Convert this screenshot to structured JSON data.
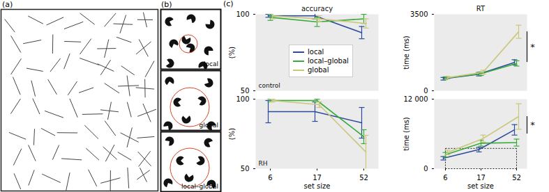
{
  "panel_labels": [
    "(a)",
    "(b)",
    "(c)"
  ],
  "stimuli": [
    "local",
    "global",
    "local–global"
  ],
  "chart_data": [
    {
      "type": "line",
      "title": "accuracy",
      "annotation": "control",
      "categories": [
        6,
        17,
        52
      ],
      "y_label": "(%)",
      "ylim": [
        50,
        100
      ],
      "yticks": [
        50,
        100
      ],
      "tick_labels": "y",
      "legend": "center",
      "series": [
        {
          "name": "local",
          "color": "#2b4a9b",
          "values": [
            99,
            99,
            88
          ],
          "errors": [
            1,
            2,
            4
          ]
        },
        {
          "name": "local–global",
          "color": "#3aab3a",
          "values": [
            98,
            95,
            97
          ],
          "errors": [
            2,
            3,
            3
          ]
        },
        {
          "name": "global",
          "color": "#c9c77a",
          "values": [
            99,
            97,
            94
          ],
          "errors": [
            2,
            2,
            3
          ]
        }
      ]
    },
    {
      "type": "line",
      "title": "RT",
      "categories": [
        6,
        17,
        52
      ],
      "y_label": "time (ms)",
      "ylim": [
        0,
        3500
      ],
      "yticks": [
        0,
        3500
      ],
      "tick_labels": "y",
      "significance": {
        "label": "*",
        "y": [
          1300,
          2700
        ]
      },
      "series": [
        {
          "name": "local",
          "color": "#2b4a9b",
          "values": [
            550,
            760,
            1300
          ],
          "errors": [
            60,
            80,
            120
          ]
        },
        {
          "name": "local–global",
          "color": "#3aab3a",
          "values": [
            580,
            780,
            1250
          ],
          "errors": [
            60,
            80,
            120
          ]
        },
        {
          "name": "global",
          "color": "#c9c77a",
          "values": [
            600,
            850,
            2700
          ],
          "errors": [
            60,
            90,
            300
          ]
        }
      ]
    },
    {
      "type": "line",
      "annotation": "RH",
      "categories": [
        6,
        17,
        52
      ],
      "x_label": "set size",
      "y_label": "(%)",
      "ylim": [
        50,
        100
      ],
      "yticks": [
        50,
        100
      ],
      "tick_labels": true,
      "series": [
        {
          "name": "local",
          "color": "#2b4a9b",
          "values": [
            91,
            91,
            83
          ],
          "errors": [
            8,
            7,
            11
          ]
        },
        {
          "name": "local–global",
          "color": "#3aab3a",
          "values": [
            99,
            99,
            73
          ],
          "errors": [
            1,
            1,
            5
          ]
        },
        {
          "name": "global",
          "color": "#c9c77a",
          "values": [
            99,
            96,
            62
          ],
          "errors": [
            1,
            2,
            12
          ]
        }
      ]
    },
    {
      "type": "line",
      "categories": [
        6,
        17,
        52
      ],
      "x_label": "set size",
      "y_label": "time (ms)",
      "ylim": [
        0,
        12000
      ],
      "yticks": [
        0,
        {
          "value": 12000,
          "label": "12 000"
        }
      ],
      "tick_labels": true,
      "significance": {
        "label": "*",
        "y": [
          6000,
          9000
        ]
      },
      "highlight": [
        0,
        3500
      ],
      "series": [
        {
          "name": "local",
          "color": "#2b4a9b",
          "values": [
            1800,
            3300,
            6700
          ],
          "errors": [
            300,
            400,
            900
          ]
        },
        {
          "name": "local–global",
          "color": "#3aab3a",
          "values": [
            2400,
            4400,
            4500
          ],
          "errors": [
            400,
            500,
            600
          ]
        },
        {
          "name": "global",
          "color": "#c9c77a",
          "values": [
            2800,
            5200,
            9000
          ],
          "errors": [
            400,
            600,
            2200
          ]
        }
      ]
    }
  ]
}
